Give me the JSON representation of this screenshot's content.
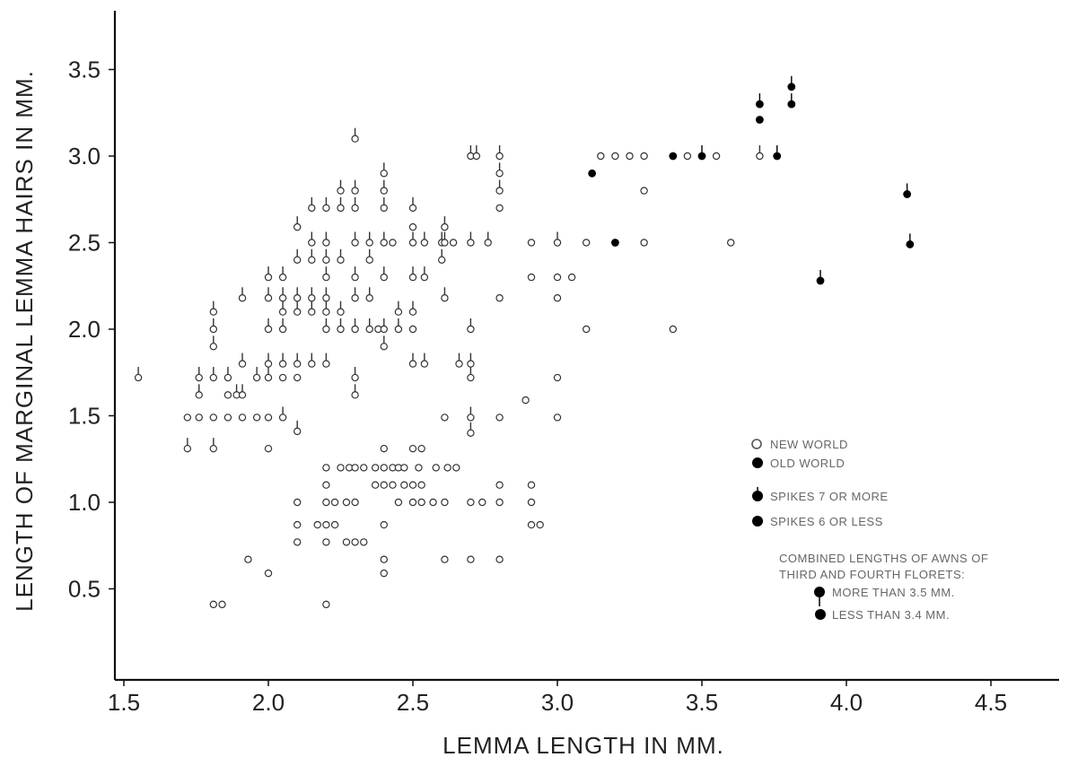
{
  "chart_data": {
    "type": "scatter",
    "title": "",
    "xlabel": "LEMMA LENGTH IN MM.",
    "ylabel": "LENGTH OF MARGINAL LEMMA HAIRS IN MM.",
    "xlim": [
      1.45,
      4.75
    ],
    "ylim": [
      0.0,
      3.85
    ],
    "xticks": [
      "1.5",
      "2.0",
      "2.5",
      "3.0",
      "3.5",
      "4.0",
      "4.5"
    ],
    "yticks": [
      "0.5",
      "1.0",
      "1.5",
      "2.0",
      "2.5",
      "3.0",
      "3.5"
    ],
    "grid": false,
    "legend_position": "lower-right",
    "legend": {
      "new_world": "NEW WORLD",
      "old_world": "OLD WORLD",
      "spikes_7": "SPIKES 7 OR MORE",
      "spikes_6": "SPIKES 6 OR LESS",
      "awn_heading_1": "COMBINED LENGTHS OF AWNS OF",
      "awn_heading_2": "THIRD AND FOURTH FLORETS:",
      "awn_more": "MORE THAN 3.5 MM.",
      "awn_less": "LESS THAN 3.4 MM."
    },
    "series": [
      {
        "name": "NEW WORLD",
        "marker": "open-circle",
        "points": [
          [
            1.55,
            1.72,
            1
          ],
          [
            1.72,
            1.31,
            1
          ],
          [
            1.72,
            1.49,
            0
          ],
          [
            1.76,
            1.49,
            0
          ],
          [
            1.76,
            1.62,
            1
          ],
          [
            1.76,
            1.72,
            1
          ],
          [
            1.81,
            0.41,
            0
          ],
          [
            1.84,
            0.41,
            0
          ],
          [
            1.81,
            1.31,
            1
          ],
          [
            1.81,
            1.49,
            0
          ],
          [
            1.81,
            1.72,
            1
          ],
          [
            1.81,
            1.9,
            1
          ],
          [
            1.81,
            2.0,
            1
          ],
          [
            1.81,
            2.1,
            1
          ],
          [
            1.86,
            1.49,
            0
          ],
          [
            1.86,
            1.72,
            1
          ],
          [
            1.86,
            1.62,
            0
          ],
          [
            1.89,
            1.62,
            1
          ],
          [
            1.91,
            1.49,
            0
          ],
          [
            1.91,
            1.62,
            1
          ],
          [
            1.91,
            1.8,
            1
          ],
          [
            1.91,
            2.18,
            1
          ],
          [
            1.93,
            0.67,
            0
          ],
          [
            1.96,
            1.49,
            0
          ],
          [
            1.96,
            1.72,
            1
          ],
          [
            2.0,
            0.59,
            0
          ],
          [
            2.0,
            1.31,
            0
          ],
          [
            2.0,
            1.49,
            0
          ],
          [
            2.0,
            1.72,
            1
          ],
          [
            2.0,
            1.8,
            1
          ],
          [
            2.0,
            2.0,
            1
          ],
          [
            2.0,
            2.18,
            1
          ],
          [
            2.0,
            2.3,
            1
          ],
          [
            2.05,
            1.49,
            1
          ],
          [
            2.05,
            1.72,
            0
          ],
          [
            2.05,
            1.8,
            1
          ],
          [
            2.05,
            2.0,
            1
          ],
          [
            2.05,
            2.1,
            1
          ],
          [
            2.05,
            2.18,
            1
          ],
          [
            2.05,
            2.3,
            1
          ],
          [
            2.1,
            0.77,
            0
          ],
          [
            2.1,
            0.87,
            0
          ],
          [
            2.1,
            1.0,
            0
          ],
          [
            2.1,
            1.41,
            1
          ],
          [
            2.1,
            1.72,
            0
          ],
          [
            2.1,
            1.8,
            1
          ],
          [
            2.1,
            2.1,
            1
          ],
          [
            2.1,
            2.18,
            1
          ],
          [
            2.1,
            2.4,
            1
          ],
          [
            2.1,
            2.59,
            1
          ],
          [
            2.15,
            1.8,
            1
          ],
          [
            2.15,
            2.1,
            1
          ],
          [
            2.15,
            2.18,
            1
          ],
          [
            2.15,
            2.4,
            1
          ],
          [
            2.15,
            2.5,
            1
          ],
          [
            2.15,
            2.7,
            1
          ],
          [
            2.17,
            0.87,
            0
          ],
          [
            2.2,
            0.41,
            0
          ],
          [
            2.2,
            0.77,
            0
          ],
          [
            2.2,
            0.87,
            0
          ],
          [
            2.2,
            1.0,
            0
          ],
          [
            2.2,
            1.1,
            0
          ],
          [
            2.2,
            1.2,
            0
          ],
          [
            2.2,
            1.8,
            1
          ],
          [
            2.2,
            2.0,
            1
          ],
          [
            2.2,
            2.1,
            1
          ],
          [
            2.2,
            2.18,
            1
          ],
          [
            2.2,
            2.3,
            1
          ],
          [
            2.2,
            2.4,
            1
          ],
          [
            2.2,
            2.5,
            1
          ],
          [
            2.2,
            2.7,
            1
          ],
          [
            2.23,
            0.87,
            0
          ],
          [
            2.23,
            1.0,
            0
          ],
          [
            2.25,
            1.2,
            0
          ],
          [
            2.25,
            2.0,
            1
          ],
          [
            2.25,
            2.1,
            1
          ],
          [
            2.25,
            2.4,
            1
          ],
          [
            2.25,
            2.7,
            1
          ],
          [
            2.25,
            2.8,
            1
          ],
          [
            2.27,
            0.77,
            0
          ],
          [
            2.27,
            1.0,
            0
          ],
          [
            2.28,
            1.2,
            0
          ],
          [
            2.3,
            0.77,
            0
          ],
          [
            2.3,
            1.0,
            0
          ],
          [
            2.3,
            1.2,
            0
          ],
          [
            2.3,
            1.62,
            1
          ],
          [
            2.3,
            1.72,
            1
          ],
          [
            2.3,
            2.0,
            1
          ],
          [
            2.3,
            2.18,
            1
          ],
          [
            2.3,
            2.3,
            1
          ],
          [
            2.3,
            2.5,
            1
          ],
          [
            2.3,
            2.7,
            1
          ],
          [
            2.3,
            2.8,
            1
          ],
          [
            2.3,
            3.1,
            1
          ],
          [
            2.33,
            0.77,
            0
          ],
          [
            2.33,
            1.2,
            0
          ],
          [
            2.35,
            2.0,
            1
          ],
          [
            2.35,
            2.18,
            1
          ],
          [
            2.35,
            2.4,
            1
          ],
          [
            2.35,
            2.5,
            1
          ],
          [
            2.37,
            1.2,
            0
          ],
          [
            2.37,
            1.1,
            0
          ],
          [
            2.38,
            2.0,
            0
          ],
          [
            2.4,
            0.59,
            0
          ],
          [
            2.4,
            0.67,
            0
          ],
          [
            2.4,
            0.87,
            0
          ],
          [
            2.4,
            1.1,
            0
          ],
          [
            2.4,
            1.2,
            0
          ],
          [
            2.4,
            1.31,
            0
          ],
          [
            2.4,
            1.9,
            1
          ],
          [
            2.4,
            2.0,
            1
          ],
          [
            2.4,
            2.3,
            1
          ],
          [
            2.4,
            2.5,
            1
          ],
          [
            2.4,
            2.7,
            1
          ],
          [
            2.4,
            2.8,
            1
          ],
          [
            2.4,
            2.9,
            1
          ],
          [
            2.43,
            1.1,
            0
          ],
          [
            2.43,
            1.2,
            0
          ],
          [
            2.43,
            2.5,
            0
          ],
          [
            2.45,
            1.0,
            0
          ],
          [
            2.45,
            1.2,
            0
          ],
          [
            2.45,
            2.0,
            1
          ],
          [
            2.45,
            2.1,
            1
          ],
          [
            2.47,
            1.1,
            0
          ],
          [
            2.47,
            1.2,
            0
          ],
          [
            2.5,
            1.0,
            0
          ],
          [
            2.5,
            1.1,
            0
          ],
          [
            2.5,
            1.31,
            0
          ],
          [
            2.5,
            1.8,
            1
          ],
          [
            2.5,
            2.0,
            0
          ],
          [
            2.5,
            2.1,
            1
          ],
          [
            2.5,
            2.3,
            1
          ],
          [
            2.5,
            2.5,
            1
          ],
          [
            2.5,
            2.59,
            0
          ],
          [
            2.5,
            2.7,
            1
          ],
          [
            2.52,
            1.2,
            0
          ],
          [
            2.53,
            1.0,
            0
          ],
          [
            2.53,
            1.1,
            0
          ],
          [
            2.53,
            1.31,
            0
          ],
          [
            2.54,
            1.8,
            1
          ],
          [
            2.54,
            2.3,
            1
          ],
          [
            2.54,
            2.5,
            1
          ],
          [
            2.57,
            1.0,
            0
          ],
          [
            2.58,
            1.2,
            0
          ],
          [
            2.6,
            2.5,
            1
          ],
          [
            2.6,
            2.4,
            1
          ],
          [
            2.61,
            1.0,
            0
          ],
          [
            2.61,
            0.67,
            0
          ],
          [
            2.61,
            1.49,
            0
          ],
          [
            2.61,
            2.18,
            1
          ],
          [
            2.61,
            2.5,
            1
          ],
          [
            2.61,
            2.59,
            1
          ],
          [
            2.62,
            1.2,
            0
          ],
          [
            2.64,
            2.5,
            0
          ],
          [
            2.65,
            1.2,
            0
          ],
          [
            2.66,
            1.8,
            1
          ],
          [
            2.7,
            0.67,
            0
          ],
          [
            2.7,
            1.0,
            0
          ],
          [
            2.7,
            1.4,
            1
          ],
          [
            2.7,
            1.49,
            1
          ],
          [
            2.7,
            1.72,
            1
          ],
          [
            2.7,
            1.8,
            1
          ],
          [
            2.7,
            2.0,
            1
          ],
          [
            2.7,
            2.5,
            1
          ],
          [
            2.7,
            3.0,
            1
          ],
          [
            2.72,
            3.0,
            1
          ],
          [
            2.74,
            1.0,
            0
          ],
          [
            2.76,
            2.5,
            1
          ],
          [
            2.8,
            0.67,
            0
          ],
          [
            2.8,
            1.0,
            0
          ],
          [
            2.8,
            1.1,
            0
          ],
          [
            2.8,
            1.49,
            0
          ],
          [
            2.8,
            2.18,
            0
          ],
          [
            2.8,
            2.7,
            0
          ],
          [
            2.8,
            2.8,
            1
          ],
          [
            2.8,
            2.9,
            1
          ],
          [
            2.8,
            3.0,
            1
          ],
          [
            2.89,
            1.59,
            0
          ],
          [
            2.91,
            0.87,
            0
          ],
          [
            2.91,
            1.0,
            0
          ],
          [
            2.91,
            1.1,
            0
          ],
          [
            2.91,
            2.3,
            0
          ],
          [
            2.91,
            2.5,
            0
          ],
          [
            2.94,
            0.87,
            0
          ],
          [
            3.0,
            1.49,
            0
          ],
          [
            3.0,
            1.72,
            0
          ],
          [
            3.0,
            2.18,
            0
          ],
          [
            3.0,
            2.3,
            0
          ],
          [
            3.0,
            2.5,
            1
          ],
          [
            3.05,
            2.3,
            0
          ],
          [
            3.1,
            2.0,
            0
          ],
          [
            3.1,
            2.5,
            0
          ],
          [
            3.15,
            3.0,
            0
          ],
          [
            3.2,
            3.0,
            0
          ],
          [
            3.25,
            3.0,
            0
          ],
          [
            3.3,
            2.5,
            0
          ],
          [
            3.3,
            2.8,
            0
          ],
          [
            3.3,
            3.0,
            0
          ],
          [
            3.4,
            2.0,
            0
          ],
          [
            3.45,
            3.0,
            0
          ],
          [
            3.55,
            3.0,
            0
          ],
          [
            3.6,
            2.5,
            0
          ],
          [
            3.7,
            3.0,
            1
          ]
        ]
      },
      {
        "name": "OLD WORLD",
        "marker": "filled-circle",
        "points": [
          [
            3.12,
            2.9,
            0
          ],
          [
            3.2,
            2.5,
            0
          ],
          [
            3.4,
            3.0,
            0
          ],
          [
            3.5,
            3.0,
            1
          ],
          [
            3.7,
            3.21,
            0
          ],
          [
            3.7,
            3.3,
            1
          ],
          [
            3.76,
            3.0,
            1
          ],
          [
            3.81,
            3.3,
            1
          ],
          [
            3.81,
            3.4,
            1
          ],
          [
            3.91,
            2.28,
            1
          ],
          [
            4.21,
            2.78,
            1
          ],
          [
            4.22,
            2.49,
            1
          ]
        ]
      }
    ]
  }
}
